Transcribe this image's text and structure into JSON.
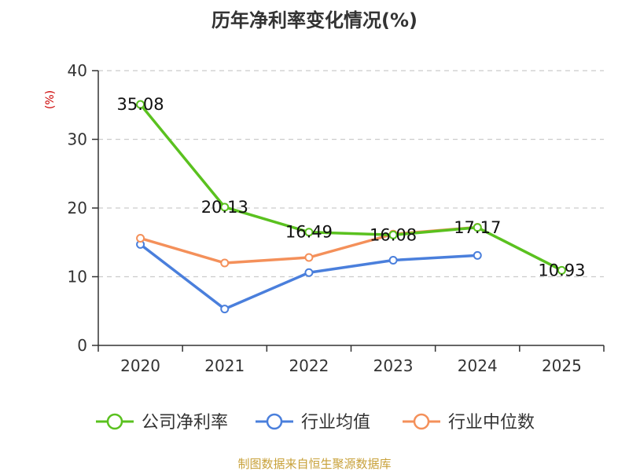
{
  "chart_data": {
    "type": "line",
    "title": "历年净利率变化情况(%)",
    "ylabel": "(%)",
    "xlabel": "",
    "categories": [
      "2020",
      "2021",
      "2022",
      "2023",
      "2024",
      "2025"
    ],
    "ylim": [
      0,
      40
    ],
    "yticks": [
      0,
      10,
      20,
      30,
      40
    ],
    "grid": true,
    "legend_position": "bottom",
    "series": [
      {
        "name": "公司净利率",
        "color": "#5ac11f",
        "values": [
          35.08,
          20.13,
          16.49,
          16.08,
          17.17,
          10.93
        ],
        "data_labels": [
          "35.08",
          "20.13",
          "16.49",
          "16.08",
          "17.17",
          "10.93"
        ]
      },
      {
        "name": "行业均值",
        "color": "#4a7fdc",
        "values": [
          14.7,
          5.3,
          10.6,
          12.4,
          13.1,
          null
        ]
      },
      {
        "name": "行业中位数",
        "color": "#f4905a",
        "values": [
          15.6,
          12.0,
          12.8,
          16.2,
          17.2,
          null
        ]
      }
    ]
  },
  "footer": {
    "source": "制图数据来自恒生聚源数据库"
  },
  "colors": {
    "title": "#333333",
    "axis": "#333333",
    "tick_label": "#333333",
    "ylabel": "#cc0000",
    "gridline": "#cccccc",
    "footer": "#c8a13a"
  }
}
